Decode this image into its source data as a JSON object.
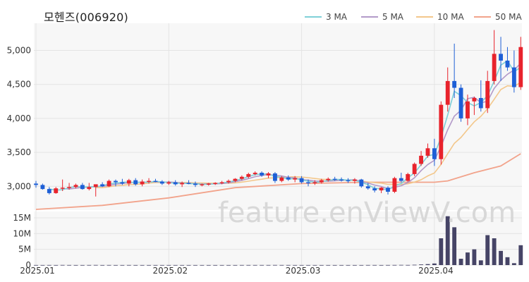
{
  "chart_data": [
    {
      "type": "candlestick",
      "title": "모헨즈(006920)",
      "ylim": [
        2650,
        5400
      ],
      "yticks": [
        3000,
        3500,
        4000,
        4500,
        5000
      ],
      "ytick_labels": [
        "3,000",
        "3,500",
        "4,000",
        "4,500",
        "5,000"
      ],
      "x_labels": [
        {
          "index": 0,
          "label": "2025.01"
        },
        {
          "index": 20,
          "label": "2025.02"
        },
        {
          "index": 40,
          "label": "2025.03"
        },
        {
          "index": 60,
          "label": "2025.04"
        }
      ],
      "legend": [
        {
          "name": "3 MA",
          "color": "#7fd0d8"
        },
        {
          "name": "5 MA",
          "color": "#b39ac9"
        },
        {
          "name": "10 MA",
          "color": "#f3c78b"
        },
        {
          "name": "50 MA",
          "color": "#f2a38b"
        }
      ],
      "up_color": "#e8232c",
      "down_color": "#1e5fd6",
      "ohlc": [
        [
          3040,
          3080,
          2980,
          3020
        ],
        [
          3020,
          3040,
          2950,
          2960
        ],
        [
          2960,
          2990,
          2880,
          2900
        ],
        [
          2900,
          2990,
          2890,
          2970
        ],
        [
          2970,
          3100,
          2930,
          2980
        ],
        [
          2980,
          3050,
          2950,
          2990
        ],
        [
          2990,
          3040,
          2970,
          3020
        ],
        [
          3020,
          3050,
          2950,
          2960
        ],
        [
          2960,
          3050,
          2940,
          2990
        ],
        [
          2990,
          3020,
          2850,
          3030
        ],
        [
          3030,
          3060,
          2990,
          3000
        ],
        [
          3000,
          3100,
          2990,
          3080
        ],
        [
          3080,
          3100,
          3000,
          3060
        ],
        [
          3060,
          3110,
          3020,
          3040
        ],
        [
          3040,
          3110,
          3000,
          3090
        ],
        [
          3090,
          3120,
          3010,
          3030
        ],
        [
          3030,
          3100,
          3000,
          3070
        ],
        [
          3070,
          3120,
          3040,
          3080
        ],
        [
          3080,
          3110,
          3060,
          3070
        ],
        [
          3070,
          3090,
          3020,
          3040
        ],
        [
          3040,
          3080,
          3020,
          3060
        ],
        [
          3060,
          3090,
          3010,
          3030
        ],
        [
          3030,
          3070,
          2990,
          3050
        ],
        [
          3050,
          3090,
          3030,
          3040
        ],
        [
          3040,
          3070,
          2990,
          3020
        ],
        [
          3020,
          3040,
          3000,
          3030
        ],
        [
          3030,
          3050,
          3010,
          3040
        ],
        [
          3040,
          3060,
          3020,
          3050
        ],
        [
          3050,
          3080,
          3030,
          3060
        ],
        [
          3060,
          3100,
          3040,
          3080
        ],
        [
          3080,
          3120,
          3060,
          3110
        ],
        [
          3110,
          3160,
          3090,
          3140
        ],
        [
          3140,
          3200,
          3120,
          3180
        ],
        [
          3180,
          3220,
          3160,
          3200
        ],
        [
          3200,
          3220,
          3140,
          3160
        ],
        [
          3160,
          3210,
          3120,
          3190
        ],
        [
          3190,
          3210,
          3050,
          3080
        ],
        [
          3080,
          3150,
          3060,
          3130
        ],
        [
          3130,
          3160,
          3080,
          3100
        ],
        [
          3100,
          3150,
          3060,
          3120
        ],
        [
          3120,
          3150,
          3040,
          3060
        ],
        [
          3060,
          3100,
          3000,
          3050
        ],
        [
          3050,
          3090,
          3020,
          3060
        ],
        [
          3060,
          3110,
          3040,
          3090
        ],
        [
          3090,
          3130,
          3070,
          3110
        ],
        [
          3110,
          3140,
          3080,
          3100
        ],
        [
          3100,
          3130,
          3070,
          3090
        ],
        [
          3090,
          3120,
          3050,
          3080
        ],
        [
          3080,
          3120,
          3040,
          3100
        ],
        [
          3100,
          3110,
          2980,
          3000
        ],
        [
          3000,
          3050,
          2950,
          2970
        ],
        [
          2970,
          3000,
          2910,
          2940
        ],
        [
          2940,
          2990,
          2900,
          2980
        ],
        [
          2980,
          3000,
          2880,
          2920
        ],
        [
          2920,
          3140,
          2900,
          3120
        ],
        [
          3120,
          3200,
          3060,
          3080
        ],
        [
          3080,
          3200,
          3060,
          3180
        ],
        [
          3180,
          3350,
          3150,
          3330
        ],
        [
          3330,
          3520,
          3300,
          3450
        ],
        [
          3450,
          3630,
          3420,
          3560
        ],
        [
          3560,
          3700,
          3300,
          3400
        ],
        [
          3400,
          4250,
          3320,
          4200
        ],
        [
          4200,
          4750,
          4100,
          4550
        ],
        [
          4550,
          5100,
          4300,
          4450
        ],
        [
          4450,
          4500,
          3950,
          4000
        ],
        [
          4000,
          4350,
          3900,
          4250
        ],
        [
          4250,
          4320,
          4050,
          4300
        ],
        [
          4300,
          4560,
          4100,
          4150
        ],
        [
          4150,
          4700,
          4080,
          4550
        ],
        [
          4550,
          5300,
          4500,
          4950
        ],
        [
          4950,
          5200,
          4550,
          4850
        ],
        [
          4850,
          5050,
          4700,
          4750
        ],
        [
          4750,
          5000,
          4380,
          4460
        ],
        [
          4460,
          5200,
          4420,
          5050
        ]
      ],
      "volume_ylim": [
        0,
        17000000
      ],
      "volume_yticks": [
        0,
        5000000,
        10000000,
        15000000
      ],
      "volume_ytick_labels": [
        "0",
        "5M",
        "10M",
        "15M"
      ],
      "volume_color": "#464466",
      "volume": [
        20000,
        20000,
        30000,
        20000,
        40000,
        30000,
        20000,
        20000,
        30000,
        40000,
        20000,
        30000,
        20000,
        20000,
        30000,
        20000,
        20000,
        20000,
        20000,
        20000,
        20000,
        20000,
        20000,
        20000,
        20000,
        20000,
        20000,
        20000,
        20000,
        20000,
        20000,
        30000,
        30000,
        30000,
        30000,
        30000,
        40000,
        30000,
        30000,
        20000,
        20000,
        20000,
        20000,
        20000,
        20000,
        20000,
        20000,
        20000,
        20000,
        20000,
        30000,
        30000,
        20000,
        30000,
        40000,
        60000,
        40000,
        100000,
        200000,
        300000,
        500000,
        8500000,
        15500000,
        12000000,
        2000000,
        4000000,
        5000000,
        1500000,
        9500000,
        8500000,
        4500000,
        2500000,
        600000,
        6300000
      ],
      "ma50_points": [
        [
          0,
          2660
        ],
        [
          10,
          2720
        ],
        [
          20,
          2830
        ],
        [
          30,
          2980
        ],
        [
          40,
          3040
        ],
        [
          50,
          3060
        ],
        [
          60,
          3060
        ],
        [
          62,
          3080
        ],
        [
          66,
          3200
        ],
        [
          70,
          3300
        ],
        [
          73,
          3480
        ]
      ]
    }
  ],
  "watermark": "feature.enViewV.com"
}
